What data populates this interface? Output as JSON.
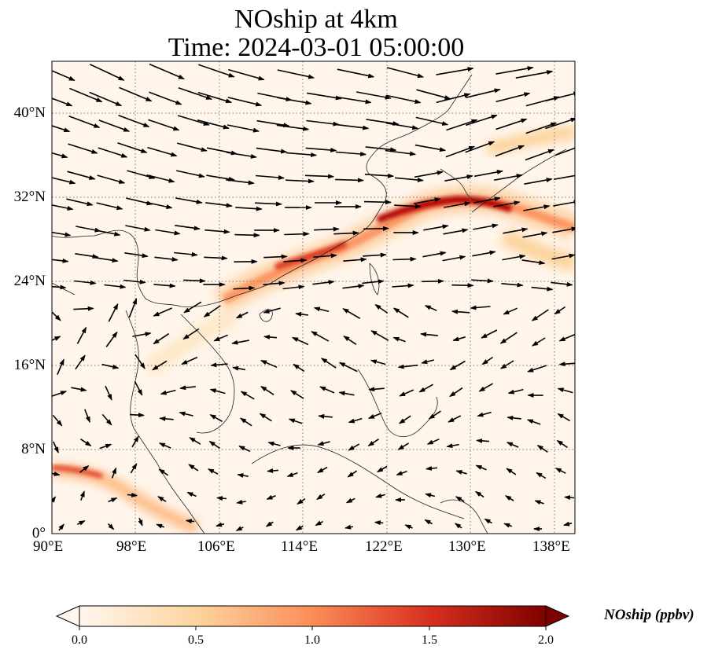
{
  "title": {
    "line1": "NOship at 4km",
    "line2": "Time: 2024-03-01 05:00:00"
  },
  "map": {
    "lon_range": [
      90,
      140
    ],
    "lat_range": [
      0,
      45
    ],
    "lon_ticks": [
      "90°E",
      "98°E",
      "106°E",
      "114°E",
      "122°E",
      "130°E",
      "138°E"
    ],
    "lat_ticks": [
      "0°",
      "8°N",
      "16°N",
      "24°N",
      "32°N",
      "40°N"
    ],
    "gridlines": true,
    "field_colormap": "OrRd",
    "wind_vectors": true
  },
  "colorbar": {
    "label": "NOship (ppbv)",
    "ticks": [
      "0.0",
      "0.5",
      "1.0",
      "1.5",
      "2.0"
    ],
    "range": [
      0.0,
      2.0
    ],
    "extend": "both",
    "colors": [
      "#fff7ec",
      "#fdd49e",
      "#fc8d59",
      "#d7301f",
      "#7f0000"
    ]
  }
}
